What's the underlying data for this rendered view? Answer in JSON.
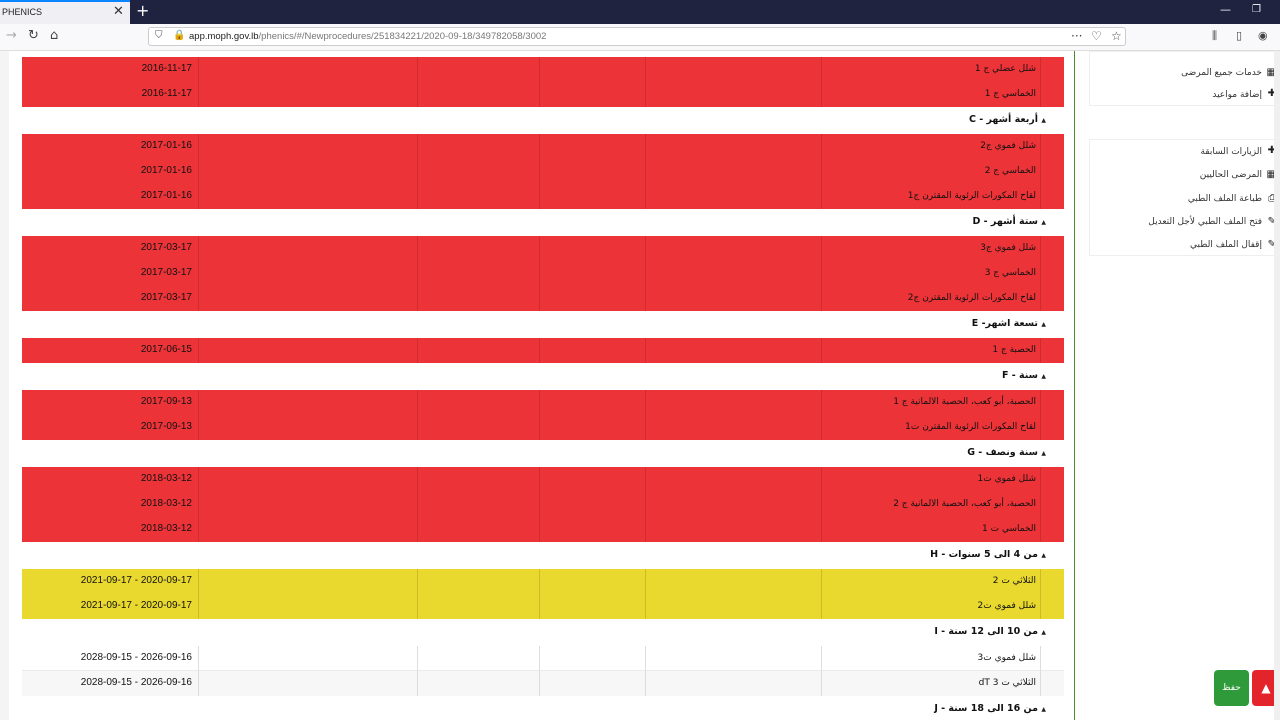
{
  "browser": {
    "tab_title": "PHENICS",
    "url_host": "app.moph.gov.lb",
    "url_path": "/phenics/#/Newprocedures/251834221/2020-09-18/349782058/3002"
  },
  "schedule": {
    "groups": [
      {
        "header": "",
        "rows": [
          {
            "name": "شلل عضلي ج 1",
            "date": "2016-11-17",
            "status": "red"
          },
          {
            "name": "الخماسي ج 1",
            "date": "2016-11-17",
            "status": "red"
          }
        ]
      },
      {
        "header": "C - أربعة أشهر",
        "rows": [
          {
            "name": "شلل فموي ج2",
            "date": "2017-01-16",
            "status": "red"
          },
          {
            "name": "الخماسي ج 2",
            "date": "2017-01-16",
            "status": "red"
          },
          {
            "name": "لقاح المكورات الرئوية المقترن ج1",
            "date": "2017-01-16",
            "status": "red"
          }
        ]
      },
      {
        "header": "D - ستة أشهر",
        "rows": [
          {
            "name": "شلل فموي ج3",
            "date": "2017-03-17",
            "status": "red"
          },
          {
            "name": "الخماسي ج 3",
            "date": "2017-03-17",
            "status": "red"
          },
          {
            "name": "لقاح المكورات الرئوية المقترن ج2",
            "date": "2017-03-17",
            "status": "red"
          }
        ]
      },
      {
        "header": "E -تسعة اشهر",
        "rows": [
          {
            "name": "الحصبة ج 1",
            "date": "2017-06-15",
            "status": "red"
          }
        ]
      },
      {
        "header": "F - سنة",
        "rows": [
          {
            "name": "الحصبة، أبو كعب، الحصبة الالمانية ج 1",
            "date": "2017-09-13",
            "status": "red"
          },
          {
            "name": "لقاح المكورات الرئوية المقترن ت1",
            "date": "2017-09-13",
            "status": "red"
          }
        ]
      },
      {
        "header": "G - سنة ونصف",
        "rows": [
          {
            "name": "شلل فموي ت1",
            "date": "2018-03-12",
            "status": "red"
          },
          {
            "name": "الحصبة، أبو كعب، الحصبة الالمانية ج 2",
            "date": "2018-03-12",
            "status": "red"
          },
          {
            "name": "الخماسي ت 1",
            "date": "2018-03-12",
            "status": "red"
          }
        ]
      },
      {
        "header": "H - من 4 الى 5 سنوات",
        "rows": [
          {
            "name": "الثلاثي ت 2",
            "date": "2021-09-17 - 2020-09-17",
            "status": "yellow"
          },
          {
            "name": "شلل فموي ت2",
            "date": "2021-09-17 - 2020-09-17",
            "status": "yellow"
          }
        ]
      },
      {
        "header": "I - من 10 الى 12 سنة",
        "rows": [
          {
            "name": "شلل فموي ت3",
            "date": "2028-09-15 - 2026-09-16",
            "status": "white"
          },
          {
            "name": "الثلاثي ت 3 dT",
            "date": "2028-09-15 - 2026-09-16",
            "status": "alt"
          }
        ]
      },
      {
        "header": "J - من 16 الى 18 سنة",
        "rows": []
      }
    ]
  },
  "sidebar": {
    "top_items": [
      {
        "label": "خدمات جميع المرضى",
        "icon": "grid-icon"
      },
      {
        "label": "إضافة مواعيد",
        "icon": "plus-icon"
      }
    ],
    "menu_items": [
      {
        "label": "الزيارات السابقة",
        "icon": "plus-icon"
      },
      {
        "label": "المرضى الحاليين",
        "icon": "grid-icon"
      },
      {
        "label": "طباعة الملف الطبي",
        "icon": "print-icon"
      },
      {
        "label": "فتح الملف الطبي لأجل التعديل",
        "icon": "edit-icon"
      },
      {
        "label": "إقفال الملف الطبي",
        "icon": "edit-icon"
      }
    ]
  },
  "actions": {
    "save_label": "حفظ",
    "top_label": "▲"
  }
}
